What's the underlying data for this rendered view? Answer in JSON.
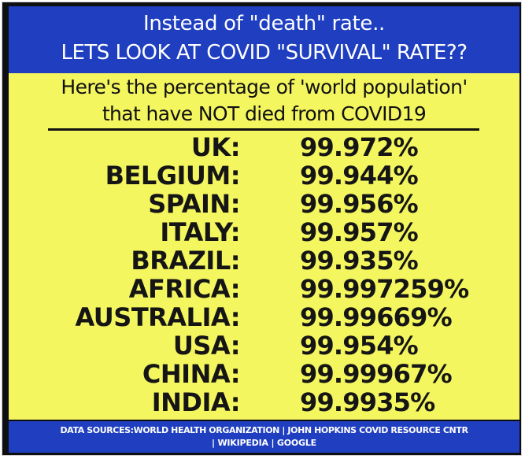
{
  "header": {
    "line1": "Instead of \"death\" rate..",
    "line2": "LETS LOOK AT COVID \"SURVIVAL\" RATE??"
  },
  "subtitle": {
    "line1": "Here's the percentage of 'world population'",
    "line2": "that have NOT died from COVID19"
  },
  "rows": [
    {
      "country": "UK:",
      "percent": "99.972%"
    },
    {
      "country": "BELGIUM:",
      "percent": "99.944%"
    },
    {
      "country": "SPAIN:",
      "percent": "99.956%"
    },
    {
      "country": "ITALY:",
      "percent": "99.957%"
    },
    {
      "country": "BRAZIL:",
      "percent": "99.935%"
    },
    {
      "country": "AFRICA:",
      "percent": "99.997259%"
    },
    {
      "country": "AUSTRALIA:",
      "percent": "99.99669%"
    },
    {
      "country": "USA:",
      "percent": "99.954%"
    },
    {
      "country": "CHINA:",
      "percent": "99.99967%"
    },
    {
      "country": "INDIA:",
      "percent": "99.9935%"
    }
  ],
  "footer": {
    "line1": "DATA SOURCES:WORLD HEALTH ORGANIZATION | JOHN HOPKINS COVID RESOURCE CNTR",
    "line2": "| WIKIPEDIA | GOOGLE"
  },
  "colors": {
    "banner_blue": "#1f3fc0",
    "panel_yellow": "#f4f65f",
    "text_dark": "#151515"
  }
}
